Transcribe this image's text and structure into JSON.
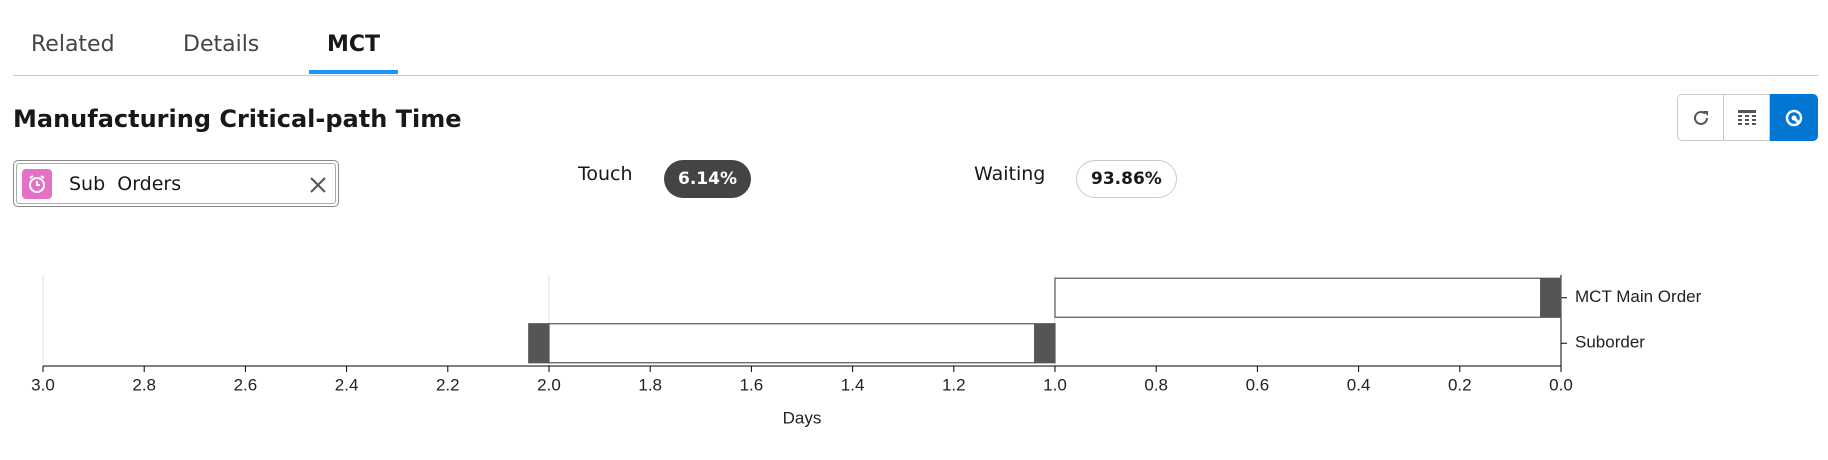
{
  "tabs": [
    "Related",
    "Details",
    "MCT"
  ],
  "active_tab": 2,
  "header": {
    "title": "Manufacturing Critical-path Time"
  },
  "filter": {
    "label": "Sub  Orders"
  },
  "stats": [
    {
      "label": "Touch",
      "value": "6.14%",
      "style": "dark"
    },
    {
      "label": "Waiting",
      "value": "93.86%",
      "style": "light"
    }
  ],
  "chart_data": {
    "type": "gantt",
    "xlabel": "Days",
    "xlim": [
      3,
      0
    ],
    "xticks": [
      {
        "value": 3,
        "label": "3.0"
      },
      2.8,
      2.6,
      2.4,
      2.2,
      {
        "value": 2,
        "label": "2.0"
      },
      1.8,
      1.6,
      1.4,
      1.2,
      {
        "value": 1,
        "label": "1.0"
      },
      0.8,
      0.6,
      0.4,
      0.2,
      {
        "value": 0,
        "label": "0.0"
      }
    ],
    "grid": true,
    "rows": [
      {
        "label": "MCT Main Order",
        "segments": [
          {
            "start": 1,
            "end": 0.04,
            "color": "#ffffff"
          },
          {
            "start": 0.04,
            "end": 0,
            "color": "#555555"
          }
        ]
      },
      {
        "label": "Suborder",
        "segments": [
          {
            "start": 2.04,
            "end": 2,
            "color": "#555555"
          },
          {
            "start": 2,
            "end": 1.04,
            "color": "#ffffff"
          },
          {
            "start": 1.04,
            "end": 1,
            "color": "#555555"
          }
        ]
      }
    ]
  }
}
